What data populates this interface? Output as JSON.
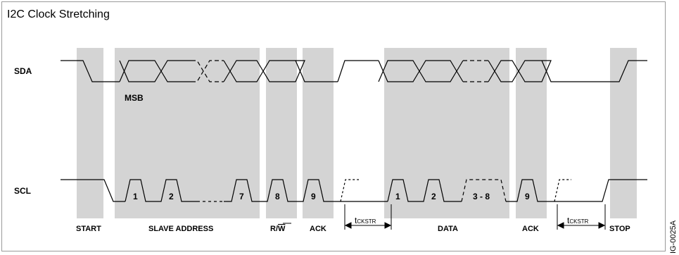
{
  "title": "I2C Clock Stretching",
  "signals": {
    "sda": "SDA",
    "scl": "SCL"
  },
  "msb": "MSB",
  "scl_bits": {
    "b1": "1",
    "b2": "2",
    "b7": "7",
    "b8": "8",
    "b9": "9",
    "d1": "1",
    "d2": "2",
    "d38": "3 - 8",
    "d9": "9"
  },
  "phases": {
    "start": "START",
    "slave_address": "SLAVE ADDRESS",
    "rw_r": "R/",
    "rw_w": "W",
    "ack1": "ACK",
    "data": "DATA",
    "ack2": "ACK",
    "stop": "STOP"
  },
  "tckstr": {
    "t": "t",
    "sub": "CKSTR"
  },
  "figure_id": "IG-0025A",
  "colors": {
    "shade": "#d4d4d4",
    "line": "#000000",
    "frame": "#9a9a9a"
  }
}
